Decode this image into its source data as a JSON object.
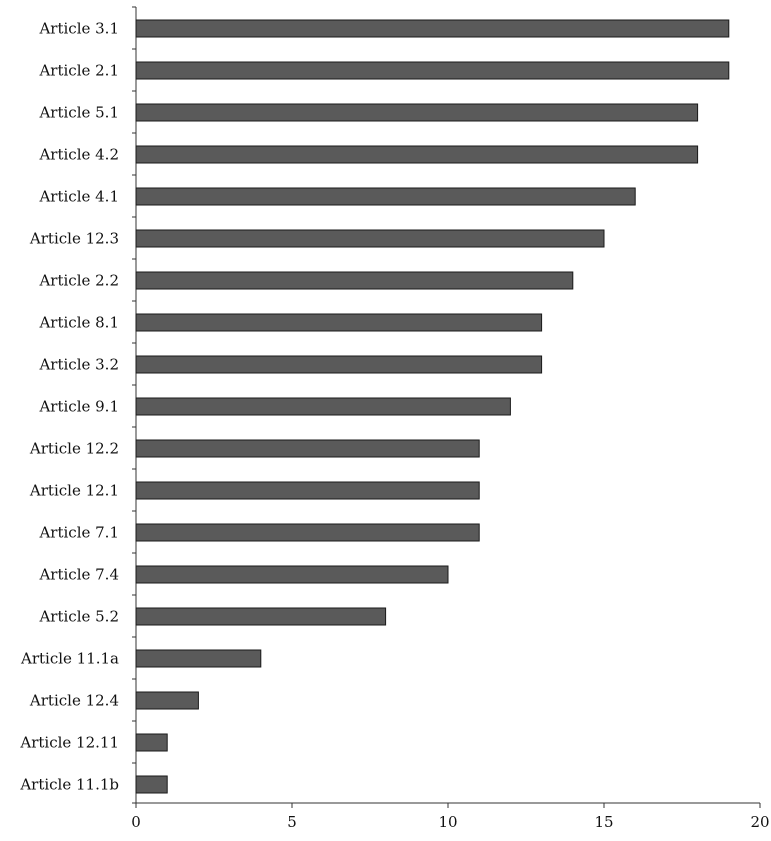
{
  "chart_data": {
    "type": "bar",
    "orientation": "horizontal",
    "title": "",
    "xlabel": "",
    "ylabel": "",
    "categories": [
      "Article 3.1",
      "Article 2.1",
      "Article 5.1",
      "Article 4.2",
      "Article 4.1",
      "Article 12.3",
      "Article 2.2",
      "Article 8.1",
      "Article 3.2",
      "Article 9.1",
      "Article 12.2",
      "Article 12.1",
      "Article 7.1",
      "Article 7.4",
      "Article 5.2",
      "Article 11.1a",
      "Article 12.4",
      "Article 12.11",
      "Article 11.1b"
    ],
    "values": [
      19,
      19,
      18,
      18,
      16,
      15,
      14,
      13,
      13,
      12,
      11,
      11,
      11,
      10,
      8,
      4,
      2,
      1,
      1
    ],
    "xlim": [
      0,
      20
    ],
    "xticks": [
      0,
      5,
      10,
      15,
      20
    ],
    "grid": false,
    "legend": "none",
    "colors": {
      "bar_fill": "#5a5a5a",
      "bar_stroke": "#1a1a1a",
      "axis": "#333333",
      "text": "#111111"
    }
  }
}
